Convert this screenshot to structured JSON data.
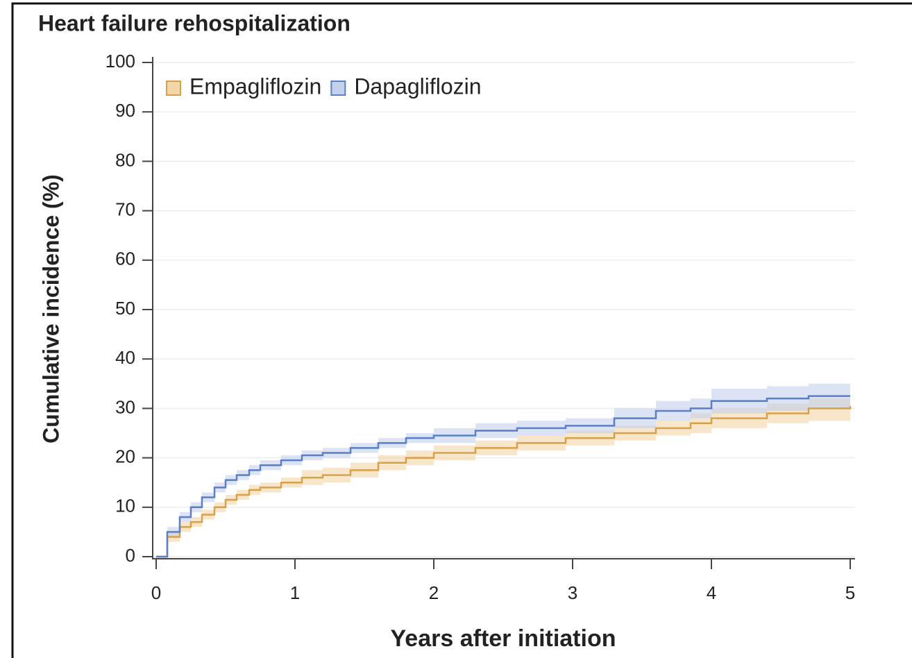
{
  "chart_data": {
    "type": "step",
    "title": "Heart failure rehospitalization",
    "x_label": "Years after initiation",
    "y_label": "Cumulative incidence (%)",
    "x": [
      0,
      0.08,
      0.17,
      0.25,
      0.33,
      0.42,
      0.5,
      0.58,
      0.67,
      0.75,
      0.9,
      1.05,
      1.2,
      1.4,
      1.6,
      1.8,
      2.0,
      2.3,
      2.6,
      2.95,
      3.3,
      3.6,
      3.85,
      4.0,
      4.4,
      4.7,
      5.0
    ],
    "series": [
      {
        "name": "Empagliflozin",
        "color": "#d9a04a",
        "band_color": "#f3d6a8",
        "values": [
          0,
          4,
          6,
          7,
          8.5,
          10,
          11.5,
          12.5,
          13.5,
          14,
          15,
          16,
          16.5,
          17.5,
          19,
          20,
          21,
          22,
          23,
          24,
          25,
          26,
          27,
          28,
          29,
          30,
          30.5
        ],
        "ci_lower": [
          0,
          3,
          5,
          6,
          7.5,
          9,
          10.5,
          11.5,
          12.5,
          13,
          14,
          14.5,
          15,
          16,
          17.5,
          18.5,
          19.5,
          20.5,
          21.5,
          22.5,
          23.5,
          24.5,
          25,
          26,
          27,
          27.5,
          28
        ],
        "ci_upper": [
          0,
          5,
          7,
          8,
          9.5,
          11,
          12.5,
          13.5,
          14.5,
          15,
          16,
          17.5,
          18,
          19,
          20.5,
          21.5,
          22.5,
          23.5,
          24.5,
          25.5,
          26.5,
          27.5,
          29,
          30,
          31,
          32,
          32.5
        ]
      },
      {
        "name": "Dapagliflozin",
        "color": "#5b7fc4",
        "band_color": "#c3d1ec",
        "values": [
          0,
          5,
          8,
          10,
          12,
          14,
          15.5,
          16.5,
          17.5,
          18.5,
          19.5,
          20.5,
          21,
          22,
          23,
          24,
          24.5,
          25.5,
          26,
          26.5,
          28,
          29.5,
          30,
          31.5,
          32,
          32.5,
          32.5
        ],
        "ci_lower": [
          0,
          4,
          7,
          9,
          11,
          13,
          14.5,
          15.5,
          16.5,
          17.5,
          18.5,
          19.5,
          20,
          21,
          22,
          23,
          23,
          24,
          24.5,
          25,
          26,
          27.5,
          28,
          29,
          29.5,
          30,
          30
        ],
        "ci_upper": [
          0,
          6,
          9,
          11,
          13,
          15,
          16.5,
          17.5,
          18.5,
          19.5,
          20.5,
          21.5,
          22,
          23,
          24,
          25,
          26,
          27,
          27.5,
          28,
          30,
          31.5,
          32,
          34,
          34.5,
          35,
          35.5
        ]
      }
    ],
    "xlim": [
      0,
      5
    ],
    "xticks": [
      0,
      1,
      2,
      3,
      4,
      5
    ],
    "ylim": [
      0,
      100
    ],
    "yticks": [
      0,
      10,
      20,
      30,
      40,
      50,
      60,
      70,
      80,
      90,
      100
    ],
    "grid": true,
    "legend": "top-left"
  }
}
